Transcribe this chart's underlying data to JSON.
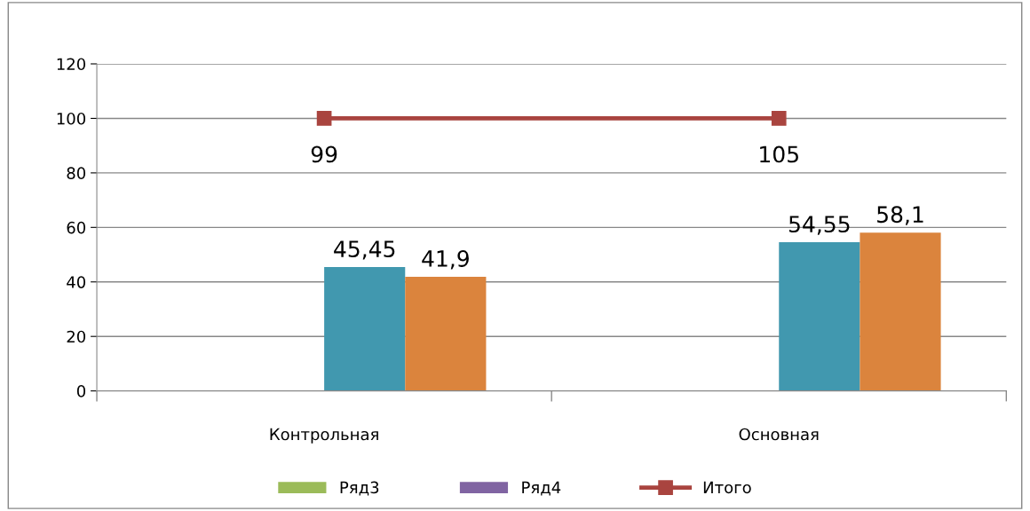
{
  "chart_data": {
    "type": "bar",
    "categories": [
      "Контрольная",
      "Основная"
    ],
    "series": [
      {
        "name": "Ряд3",
        "color": "#9bbb59",
        "values": [
          null,
          null
        ]
      },
      {
        "name": "Ряд4",
        "color": "#8064a2",
        "values": [
          null,
          null
        ]
      },
      {
        "color": "#4198af",
        "values": [
          45.45,
          54.55
        ],
        "value_labels": [
          "45,45",
          "54,55"
        ]
      },
      {
        "color": "#db843d",
        "values": [
          41.9,
          58.1
        ],
        "value_labels": [
          "41,9",
          "58,1"
        ]
      },
      {
        "name": "Итого",
        "type": "line",
        "color": "#a9443f",
        "values": [
          100,
          100
        ],
        "marker": "square"
      }
    ],
    "annotations": [
      {
        "text": "99",
        "x": "Контрольная",
        "y": 100
      },
      {
        "text": "105",
        "x": "Основная",
        "y": 100
      }
    ],
    "ylim": [
      0,
      120
    ],
    "yticks": [
      0,
      20,
      40,
      60,
      80,
      100,
      120
    ],
    "grid": "y",
    "legend": "bottom"
  }
}
